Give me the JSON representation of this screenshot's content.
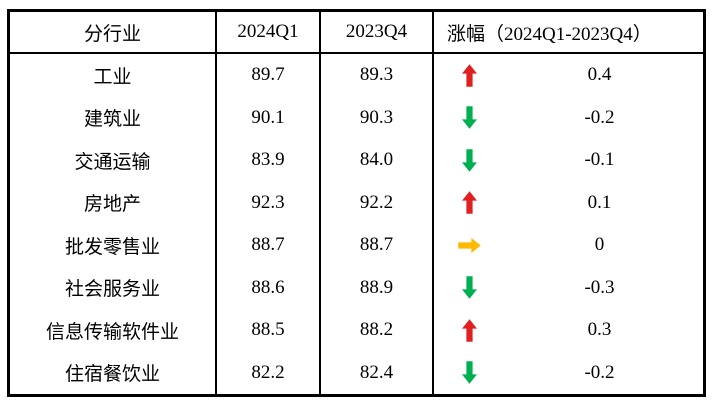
{
  "table": {
    "headers": {
      "industry": "分行业",
      "q1": "2024Q1",
      "q4": "2023Q4",
      "change": "涨幅（2024Q1-2023Q4）"
    },
    "rows": [
      {
        "industry": "工业",
        "q1": "89.7",
        "q4": "89.3",
        "direction": "up",
        "change": "0.4"
      },
      {
        "industry": "建筑业",
        "q1": "90.1",
        "q4": "90.3",
        "direction": "down",
        "change": "-0.2"
      },
      {
        "industry": "交通运输",
        "q1": "83.9",
        "q4": "84.0",
        "direction": "down",
        "change": "-0.1"
      },
      {
        "industry": "房地产",
        "q1": "92.3",
        "q4": "92.2",
        "direction": "up",
        "change": "0.1"
      },
      {
        "industry": "批发零售业",
        "q1": "88.7",
        "q4": "88.7",
        "direction": "flat",
        "change": "0"
      },
      {
        "industry": "社会服务业",
        "q1": "88.6",
        "q4": "88.9",
        "direction": "down",
        "change": "-0.3"
      },
      {
        "industry": "信息传输软件业",
        "q1": "88.5",
        "q4": "88.2",
        "direction": "up",
        "change": "0.3"
      },
      {
        "industry": "住宿餐饮业",
        "q1": "82.2",
        "q4": "82.4",
        "direction": "down",
        "change": "-0.2"
      }
    ]
  },
  "colors": {
    "up": "#E02020",
    "down": "#00B050",
    "flat": "#FFB900",
    "border": "#000000"
  },
  "icons": {
    "up": "up-arrow-icon",
    "down": "down-arrow-icon",
    "flat": "right-arrow-icon"
  }
}
